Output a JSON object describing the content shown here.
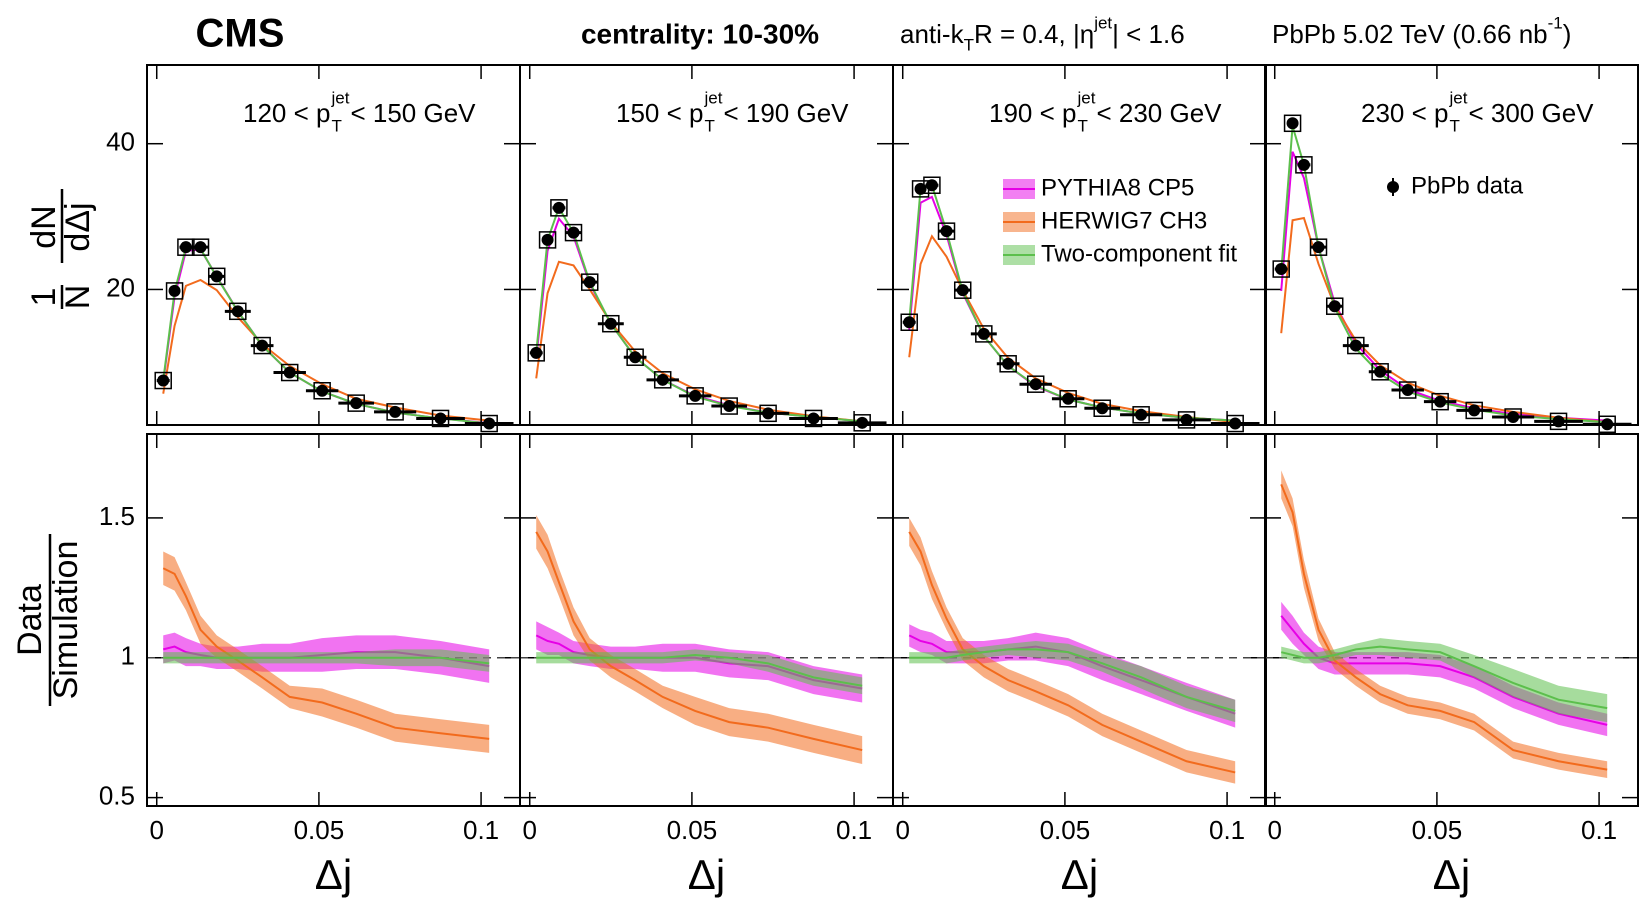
{
  "texts": {
    "experiment": "CMS",
    "centrality": "centrality: 10-30%",
    "jets": [
      "anti-k",
      "T",
      " R = 0.4, |η",
      "jet",
      "| < 1.6"
    ],
    "dataset": [
      "PbPb 5.02 TeV (0.66 nb",
      "-1",
      ")"
    ]
  },
  "chart_data": [
    {
      "type": "line",
      "label": [
        "120 < p",
        "jet",
        "T",
        " < 150 GeV"
      ],
      "ylabel": [
        "1",
        "dN",
        "N",
        "dΔj"
      ],
      "xlim": [
        -0.003,
        0.112
      ],
      "ylim": [
        1.4,
        50.8
      ],
      "xticks": [
        0,
        0.05,
        0.1
      ],
      "yticks": [
        20,
        40
      ],
      "x": [
        0.002,
        0.0055,
        0.009,
        0.0135,
        0.0185,
        0.025,
        0.0325,
        0.041,
        0.051,
        0.0615,
        0.0735,
        0.0875,
        0.1025
      ],
      "bins": [
        0,
        0.004,
        0.007,
        0.011,
        0.016,
        0.021,
        0.029,
        0.036,
        0.046,
        0.056,
        0.067,
        0.08,
        0.095,
        0.11
      ],
      "series": [
        {
          "style": "points",
          "color": "#000000",
          "values": [
            7.5,
            19.8,
            25.8,
            25.8,
            21.8,
            17,
            12.3,
            8.6,
            6.1,
            4.4,
            3.2,
            2.3,
            1.6
          ]
        },
        {
          "style": "line",
          "color": "#e600e6",
          "values": [
            7.3,
            19.0,
            25.3,
            25.5,
            21.8,
            17,
            12.3,
            8.6,
            6.0,
            4.3,
            3.1,
            2.3,
            1.65
          ]
        },
        {
          "style": "line",
          "color": "#f26b1d",
          "values": [
            5.7,
            15,
            20.5,
            21.3,
            19.9,
            16.2,
            12.5,
            9.5,
            7,
            5,
            3.8,
            2.7,
            2
          ]
        },
        {
          "style": "line",
          "color": "#5cbf4c",
          "values": [
            7.5,
            19.7,
            25.7,
            25.6,
            21.7,
            17,
            12.3,
            8.6,
            6.0,
            4.3,
            3.1,
            2.3,
            1.6
          ]
        }
      ]
    },
    {
      "type": "line",
      "label": [
        "150 < p",
        "jet",
        "T",
        " < 190 GeV"
      ],
      "xlim": [
        -0.003,
        0.112
      ],
      "ylim": [
        1.4,
        50.8
      ],
      "xticks": [
        0,
        0.05,
        0.1
      ],
      "yticks": [
        20,
        40
      ],
      "x": [
        0.002,
        0.0055,
        0.009,
        0.0135,
        0.0185,
        0.025,
        0.0325,
        0.041,
        0.051,
        0.0615,
        0.0735,
        0.0875,
        0.1025
      ],
      "bins": [
        0,
        0.004,
        0.007,
        0.011,
        0.016,
        0.021,
        0.029,
        0.036,
        0.046,
        0.056,
        0.067,
        0.08,
        0.095,
        0.11
      ],
      "series": [
        {
          "style": "points",
          "color": "#000000",
          "values": [
            11.3,
            26.8,
            31.2,
            27.8,
            21,
            15.3,
            10.7,
            7.6,
            5.4,
            4.0,
            3.0,
            2.3,
            1.7
          ]
        },
        {
          "style": "line",
          "color": "#e600e6",
          "values": [
            10.5,
            25.3,
            29.7,
            27.3,
            20.8,
            15.3,
            10.7,
            7.6,
            5.4,
            4.1,
            3.1,
            2.5,
            1.9
          ]
        },
        {
          "style": "line",
          "color": "#f26b1d",
          "values": [
            7.8,
            19.5,
            23.8,
            23.3,
            20,
            15.5,
            11.5,
            8.5,
            6.3,
            4.7,
            3.5,
            2.6,
            1.9
          ]
        },
        {
          "style": "line",
          "color": "#5cbf4c",
          "values": [
            11.3,
            26.8,
            31.2,
            27.8,
            21,
            15.3,
            10.7,
            7.6,
            5.3,
            4.0,
            3.1,
            2.5,
            1.9
          ]
        }
      ]
    },
    {
      "type": "line",
      "label": [
        "190 < p",
        "jet",
        "T",
        " < 230 GeV"
      ],
      "legend": "center right",
      "xlim": [
        -0.003,
        0.112
      ],
      "ylim": [
        1.4,
        50.8
      ],
      "xticks": [
        0,
        0.05,
        0.1
      ],
      "yticks": [
        20,
        40
      ],
      "x": [
        0.002,
        0.0055,
        0.009,
        0.0135,
        0.0185,
        0.025,
        0.0325,
        0.041,
        0.051,
        0.0615,
        0.0735,
        0.0875,
        0.1025
      ],
      "bins": [
        0,
        0.004,
        0.007,
        0.011,
        0.016,
        0.021,
        0.029,
        0.036,
        0.046,
        0.056,
        0.067,
        0.08,
        0.095,
        0.11
      ],
      "series": [
        {
          "style": "points",
          "color": "#000000",
          "values": [
            15.5,
            33.8,
            34.3,
            28,
            19.9,
            13.9,
            9.8,
            7.0,
            5.0,
            3.7,
            2.8,
            2.1,
            1.6
          ]
        },
        {
          "style": "line",
          "name": "PYTHIA8 CP5",
          "color": "#e600e6",
          "values": [
            14.4,
            31.9,
            32.7,
            27.5,
            19.5,
            13.6,
            9.5,
            6.7,
            4.9,
            3.8,
            3.0,
            2.4,
            2.0
          ]
        },
        {
          "style": "line",
          "name": "HERWIG7 CH3",
          "color": "#f26b1d",
          "values": [
            10.7,
            23.5,
            27.3,
            24.5,
            19.9,
            14.6,
            10.6,
            7.8,
            5.8,
            4.3,
            3.3,
            2.5,
            1.8
          ]
        },
        {
          "style": "line",
          "name": "Two-component fit",
          "color": "#5cbf4c",
          "values": [
            15.5,
            33.8,
            34.3,
            28,
            19.7,
            13.6,
            9.5,
            6.8,
            4.9,
            3.8,
            3.0,
            2.4,
            2.0
          ]
        }
      ]
    },
    {
      "type": "line",
      "label": [
        "230 < p",
        "jet",
        "T",
        " < 300 GeV"
      ],
      "legend": "upper right",
      "xlim": [
        -0.003,
        0.112
      ],
      "ylim": [
        1.4,
        50.8
      ],
      "xticks": [
        0,
        0.05,
        0.1
      ],
      "yticks": [
        20,
        40
      ],
      "x": [
        0.002,
        0.0055,
        0.009,
        0.0135,
        0.0185,
        0.025,
        0.0325,
        0.041,
        0.051,
        0.0615,
        0.0735,
        0.0875,
        0.1025
      ],
      "bins": [
        0,
        0.004,
        0.007,
        0.011,
        0.016,
        0.021,
        0.029,
        0.036,
        0.046,
        0.056,
        0.067,
        0.08,
        0.095,
        0.11
      ],
      "series": [
        {
          "style": "points",
          "name": "PbPb data",
          "color": "#000000",
          "values": [
            22.8,
            42.8,
            37.1,
            25.8,
            17.7,
            12.3,
            8.7,
            6.2,
            4.6,
            3.4,
            2.5,
            1.9,
            1.5
          ]
        },
        {
          "style": "line",
          "color": "#e600e6",
          "values": [
            19.8,
            38.9,
            35.3,
            25.8,
            18.1,
            12.6,
            8.9,
            6.3,
            4.7,
            3.7,
            2.9,
            2.4,
            2.0
          ]
        },
        {
          "style": "line",
          "color": "#f26b1d",
          "values": [
            14,
            29.5,
            29.8,
            23.5,
            17.7,
            13,
            9.6,
            7.2,
            5.4,
            4.1,
            3.2,
            2.4,
            1.8
          ]
        },
        {
          "style": "line",
          "color": "#5cbf4c",
          "values": [
            22.4,
            42.4,
            37.1,
            25.8,
            17.5,
            11.9,
            8.4,
            6.0,
            4.5,
            3.5,
            2.7,
            2.2,
            1.8
          ]
        }
      ]
    },
    {
      "type": "band",
      "ylabel": [
        "Data",
        "Simulation"
      ],
      "xlabel": "Δj",
      "reference": 1,
      "xlim": [
        -0.003,
        0.112
      ],
      "ylim": [
        0.47,
        1.8
      ],
      "xticks": [
        0,
        0.05,
        0.1
      ],
      "yticks": [
        0.5,
        1,
        1.5
      ],
      "x": [
        0.002,
        0.0055,
        0.009,
        0.0135,
        0.0185,
        0.025,
        0.0325,
        0.041,
        0.051,
        0.0615,
        0.0735,
        0.0875,
        0.1025
      ],
      "series": [
        {
          "color": "#e600e6",
          "values": [
            1.03,
            1.04,
            1.02,
            1.01,
            1.0,
            1.0,
            1.0,
            1.0,
            1.01,
            1.02,
            1.02,
            1.0,
            0.97
          ],
          "errors": [
            0.05,
            0.05,
            0.05,
            0.04,
            0.04,
            0.04,
            0.05,
            0.05,
            0.06,
            0.06,
            0.06,
            0.06,
            0.06
          ]
        },
        {
          "color": "#f26b1d",
          "values": [
            1.32,
            1.3,
            1.22,
            1.1,
            1.04,
            0.99,
            0.93,
            0.86,
            0.84,
            0.8,
            0.75,
            0.73,
            0.71
          ],
          "errors": [
            0.06,
            0.06,
            0.05,
            0.05,
            0.04,
            0.04,
            0.04,
            0.04,
            0.05,
            0.05,
            0.05,
            0.05,
            0.05
          ]
        },
        {
          "color": "#5cbf4c",
          "values": [
            1.0,
            1.0,
            1.0,
            1.0,
            1.0,
            1.0,
            1.0,
            1.0,
            1.0,
            1.0,
            1.0,
            1.0,
            0.98
          ],
          "errors": [
            0.02,
            0.02,
            0.02,
            0.02,
            0.02,
            0.02,
            0.02,
            0.02,
            0.02,
            0.02,
            0.03,
            0.03,
            0.03
          ]
        }
      ]
    },
    {
      "type": "band",
      "xlabel": "Δj",
      "reference": 1,
      "xlim": [
        -0.003,
        0.112
      ],
      "ylim": [
        0.47,
        1.8
      ],
      "xticks": [
        0,
        0.05,
        0.1
      ],
      "yticks": [
        0.5,
        1,
        1.5
      ],
      "x": [
        0.002,
        0.0055,
        0.009,
        0.0135,
        0.0185,
        0.025,
        0.0325,
        0.041,
        0.051,
        0.0615,
        0.0735,
        0.0875,
        0.1025
      ],
      "series": [
        {
          "color": "#e600e6",
          "values": [
            1.08,
            1.06,
            1.05,
            1.02,
            1.01,
            1.0,
            1.0,
            1.0,
            1.0,
            0.98,
            0.97,
            0.92,
            0.89
          ],
          "errors": [
            0.05,
            0.05,
            0.04,
            0.04,
            0.04,
            0.04,
            0.04,
            0.05,
            0.05,
            0.05,
            0.05,
            0.05,
            0.05
          ]
        },
        {
          "color": "#f26b1d",
          "values": [
            1.45,
            1.38,
            1.27,
            1.13,
            1.03,
            0.97,
            0.92,
            0.86,
            0.81,
            0.77,
            0.75,
            0.71,
            0.67
          ],
          "errors": [
            0.06,
            0.06,
            0.05,
            0.05,
            0.04,
            0.04,
            0.04,
            0.04,
            0.05,
            0.05,
            0.05,
            0.05,
            0.05
          ]
        },
        {
          "color": "#5cbf4c",
          "values": [
            1.0,
            1.0,
            1.0,
            1.0,
            1.0,
            1.0,
            1.0,
            1.0,
            1.01,
            1.0,
            0.98,
            0.93,
            0.9
          ],
          "errors": [
            0.02,
            0.02,
            0.02,
            0.02,
            0.02,
            0.02,
            0.02,
            0.02,
            0.02,
            0.02,
            0.03,
            0.03,
            0.03
          ]
        }
      ]
    },
    {
      "type": "band",
      "xlabel": "Δj",
      "reference": 1,
      "xlim": [
        -0.003,
        0.112
      ],
      "ylim": [
        0.47,
        1.8
      ],
      "xticks": [
        0,
        0.05,
        0.1
      ],
      "yticks": [
        0.5,
        1,
        1.5
      ],
      "x": [
        0.002,
        0.0055,
        0.009,
        0.0135,
        0.0185,
        0.025,
        0.0325,
        0.041,
        0.051,
        0.0615,
        0.0735,
        0.0875,
        0.1025
      ],
      "series": [
        {
          "color": "#e600e6",
          "values": [
            1.08,
            1.06,
            1.05,
            1.02,
            1.02,
            1.02,
            1.03,
            1.04,
            1.02,
            0.97,
            0.92,
            0.86,
            0.8
          ],
          "errors": [
            0.04,
            0.04,
            0.04,
            0.04,
            0.04,
            0.04,
            0.04,
            0.05,
            0.05,
            0.05,
            0.05,
            0.05,
            0.05
          ]
        },
        {
          "color": "#f26b1d",
          "values": [
            1.45,
            1.38,
            1.26,
            1.14,
            1.03,
            0.97,
            0.92,
            0.88,
            0.83,
            0.76,
            0.7,
            0.63,
            0.59
          ],
          "errors": [
            0.05,
            0.05,
            0.05,
            0.04,
            0.04,
            0.04,
            0.04,
            0.04,
            0.04,
            0.04,
            0.04,
            0.04,
            0.04
          ]
        },
        {
          "color": "#5cbf4c",
          "values": [
            1.0,
            1.0,
            1.0,
            1.0,
            1.01,
            1.02,
            1.03,
            1.03,
            1.02,
            0.98,
            0.93,
            0.86,
            0.81
          ],
          "errors": [
            0.02,
            0.02,
            0.02,
            0.02,
            0.02,
            0.02,
            0.02,
            0.03,
            0.03,
            0.03,
            0.04,
            0.04,
            0.04
          ]
        }
      ]
    },
    {
      "type": "band",
      "xlabel": "Δj",
      "reference": 1,
      "xlim": [
        -0.003,
        0.112
      ],
      "ylim": [
        0.47,
        1.8
      ],
      "xticks": [
        0,
        0.05,
        0.1
      ],
      "yticks": [
        0.5,
        1,
        1.5
      ],
      "x": [
        0.002,
        0.0055,
        0.009,
        0.0135,
        0.0185,
        0.025,
        0.0325,
        0.041,
        0.051,
        0.0615,
        0.0735,
        0.0875,
        0.1025
      ],
      "series": [
        {
          "color": "#e600e6",
          "values": [
            1.15,
            1.1,
            1.05,
            1.0,
            0.98,
            0.98,
            0.98,
            0.98,
            0.97,
            0.93,
            0.86,
            0.8,
            0.76
          ],
          "errors": [
            0.05,
            0.05,
            0.04,
            0.04,
            0.04,
            0.04,
            0.04,
            0.04,
            0.04,
            0.04,
            0.04,
            0.04,
            0.04
          ]
        },
        {
          "color": "#f26b1d",
          "values": [
            1.62,
            1.52,
            1.3,
            1.1,
            0.99,
            0.93,
            0.87,
            0.83,
            0.81,
            0.77,
            0.67,
            0.63,
            0.6
          ],
          "errors": [
            0.05,
            0.05,
            0.05,
            0.04,
            0.03,
            0.03,
            0.03,
            0.03,
            0.03,
            0.03,
            0.03,
            0.03,
            0.03
          ]
        },
        {
          "color": "#5cbf4c",
          "values": [
            1.02,
            1.01,
            1.0,
            1.0,
            1.01,
            1.03,
            1.04,
            1.03,
            1.02,
            0.97,
            0.91,
            0.85,
            0.82
          ],
          "errors": [
            0.02,
            0.02,
            0.02,
            0.02,
            0.02,
            0.02,
            0.03,
            0.03,
            0.03,
            0.04,
            0.05,
            0.05,
            0.05
          ]
        }
      ]
    }
  ]
}
